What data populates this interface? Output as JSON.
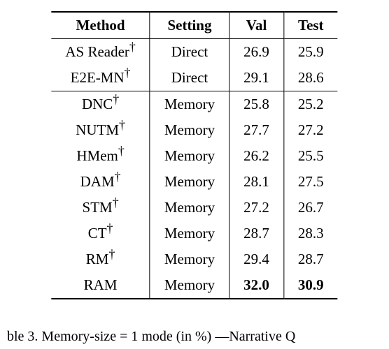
{
  "table": {
    "columns": [
      "Method",
      "Setting",
      "Val",
      "Test"
    ],
    "fontsize_pt": 21,
    "header_weight": "bold",
    "text_color": "#000000",
    "border_color": "#000000",
    "rows": [
      {
        "method": "AS Reader",
        "dagger": true,
        "setting": "Direct",
        "val": "26.9",
        "test": "25.9",
        "bold": false,
        "sep_after": false
      },
      {
        "method": "E2E-MN",
        "dagger": true,
        "setting": "Direct",
        "val": "29.1",
        "test": "28.6",
        "bold": false,
        "sep_after": true
      },
      {
        "method": "DNC",
        "dagger": true,
        "setting": "Memory",
        "val": "25.8",
        "test": "25.2",
        "bold": false,
        "sep_after": false
      },
      {
        "method": "NUTM",
        "dagger": true,
        "setting": "Memory",
        "val": "27.7",
        "test": "27.2",
        "bold": false,
        "sep_after": false
      },
      {
        "method": "HMem",
        "dagger": true,
        "setting": "Memory",
        "val": "26.2",
        "test": "25.5",
        "bold": false,
        "sep_after": false
      },
      {
        "method": "DAM",
        "dagger": true,
        "setting": "Memory",
        "val": "28.1",
        "test": "27.5",
        "bold": false,
        "sep_after": false
      },
      {
        "method": "STM",
        "dagger": true,
        "setting": "Memory",
        "val": "27.2",
        "test": "26.7",
        "bold": false,
        "sep_after": false
      },
      {
        "method": "CT",
        "dagger": true,
        "setting": "Memory",
        "val": "28.7",
        "test": "28.3",
        "bold": false,
        "sep_after": false
      },
      {
        "method": "RM",
        "dagger": true,
        "setting": "Memory",
        "val": "29.4",
        "test": "28.7",
        "bold": false,
        "sep_after": false
      },
      {
        "method": "RAM",
        "dagger": false,
        "setting": "Memory",
        "val": "32.0",
        "test": "30.9",
        "bold": true,
        "sep_after": false
      }
    ]
  },
  "caption": {
    "text": "ble 3. Memory-size = 1 mode (in %) —Narrative Q",
    "fontsize_pt": 20
  },
  "colors": {
    "background": "#ffffff",
    "text": "#000000",
    "rule": "#000000"
  }
}
